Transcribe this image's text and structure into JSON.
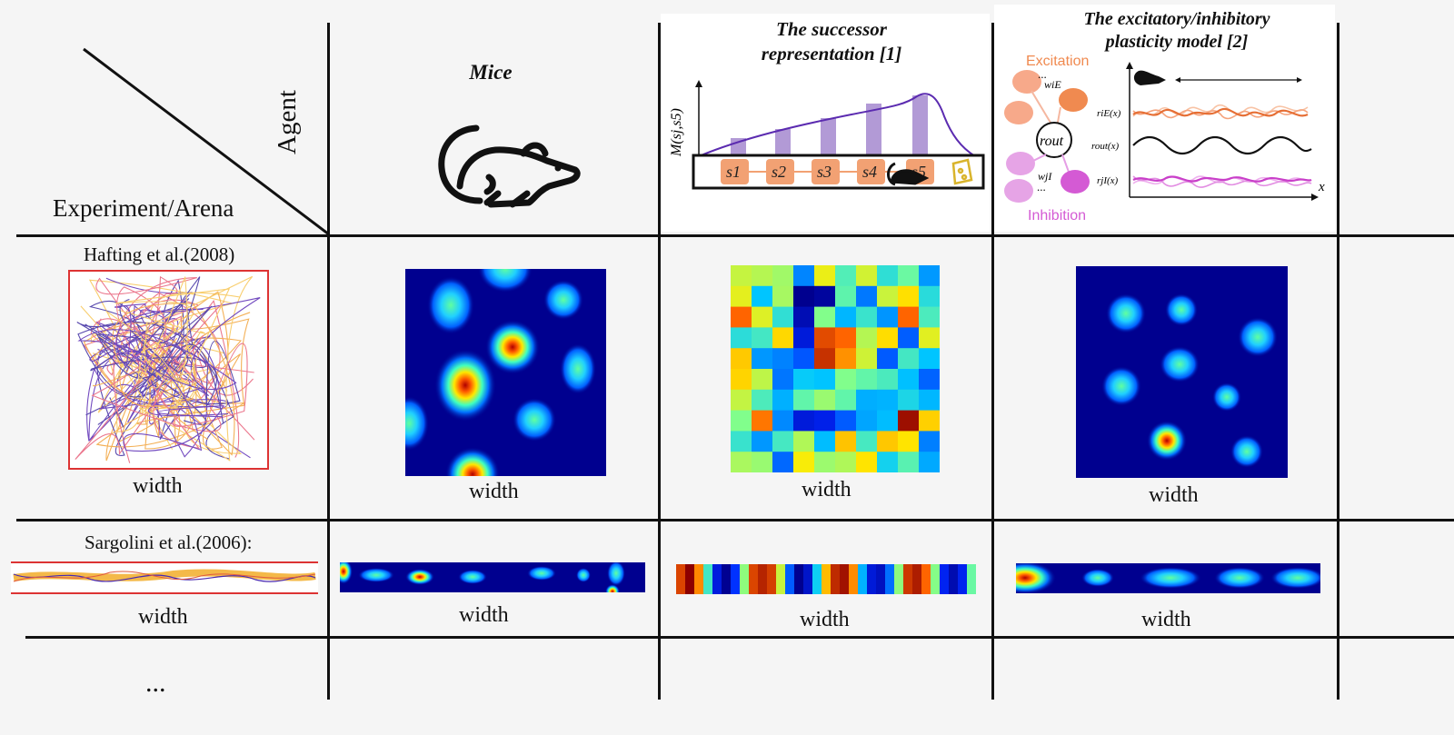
{
  "header": {
    "experiment_label": "Experiment/Arena",
    "agent_label": "Agent",
    "col_mice": "Mice",
    "col_sr_line1": "The successor",
    "col_sr_line2": "representation [1]",
    "col_ei_line1": "The excitatory/inhibitory",
    "col_ei_line2": "plasticity model [2]"
  },
  "sr_diagram": {
    "y_axis_label": "M(sj,s5)",
    "states": [
      "s1",
      "s2",
      "s3",
      "s4",
      "s5"
    ]
  },
  "ei_diagram": {
    "excitation_label": "Excitation",
    "inhibition_label": "Inhibition",
    "neuron_label": "rout",
    "trace_labels": [
      "riE(x)",
      "rout(x)",
      "rjI(x)"
    ],
    "x_label": "x",
    "weight_labels": [
      "wiE",
      "wjI"
    ],
    "ellipsis": "..."
  },
  "rows": [
    {
      "experiment": "Hafting et al.(2008)",
      "width_labels": [
        "width",
        "width",
        "width",
        "width"
      ]
    },
    {
      "experiment": "Sargolini et al.(2006):",
      "width_labels": [
        "width",
        "width",
        "width",
        "width"
      ]
    }
  ],
  "more_rows": "...",
  "colors": {
    "line": "#111111",
    "excitation": "#f08a50",
    "inhibition": "#d45ad4",
    "sr_bar": "#b29ad6",
    "sr_curve": "#5b2bb0",
    "state_box": "#f2a173",
    "heatmap_bg": "#00008f"
  }
}
